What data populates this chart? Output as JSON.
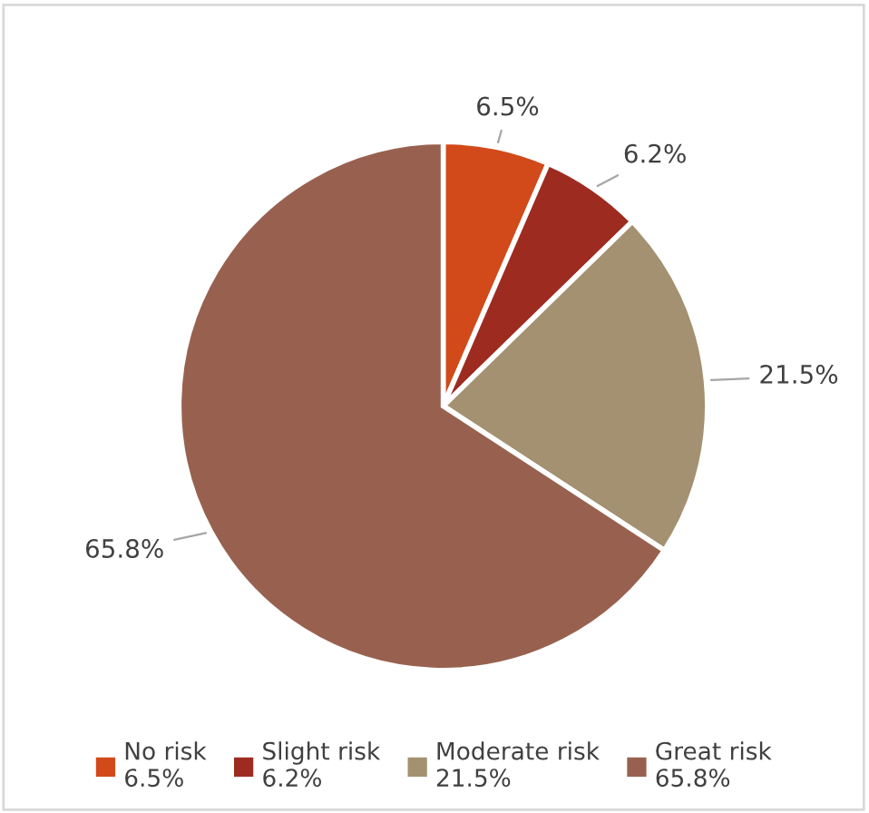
{
  "chart_data": {
    "type": "pie",
    "categories": [
      "No risk",
      "Slight risk",
      "Moderate risk",
      "Great risk"
    ],
    "values": [
      6.5,
      6.2,
      21.5,
      65.8
    ],
    "colors": [
      "#d24a1a",
      "#9e2b20",
      "#a39171",
      "#98614f"
    ],
    "value_labels": [
      "6.5%",
      "6.2%",
      "21.5%",
      "65.8%"
    ],
    "legend": "bottom"
  }
}
